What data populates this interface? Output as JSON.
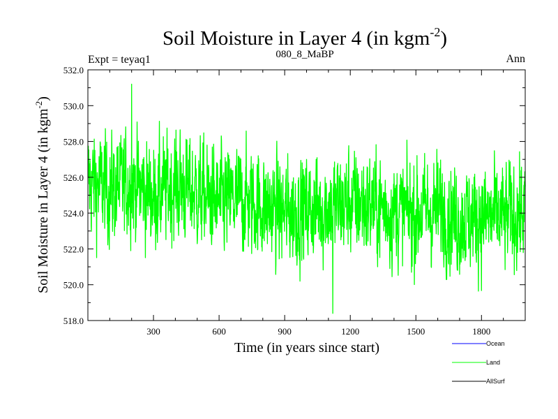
{
  "colors": {
    "background": "#ffffff",
    "axis": "#000000",
    "ocean": "#0000ff",
    "land": "#00ff00",
    "allsurf": "#000000"
  },
  "chart_data": {
    "type": "line",
    "title": "Soil Moisture in Layer 4 (in kgm",
    "title_sup": "-2",
    "title_close": ")",
    "subtitle_left": "Expt = teyaq1",
    "subtitle_center": "080_8_MaBP",
    "subtitle_right": "Ann",
    "xlabel": "Time (in years since start)",
    "ylabel": "Soil Moisture in Layer 4 (in kgm",
    "ylabel_sup": "-2",
    "ylabel_close": ")",
    "xlim": [
      0,
      2000
    ],
    "ylim": [
      518.0,
      532.0
    ],
    "xticks": [
      300,
      600,
      900,
      1200,
      1500,
      1800
    ],
    "xtick_labels": [
      "300",
      "600",
      "900",
      "1200",
      "1500",
      "1800"
    ],
    "yticks": [
      518.0,
      520.0,
      522.0,
      524.0,
      526.0,
      528.0,
      530.0,
      532.0
    ],
    "ytick_labels": [
      "518.0",
      "520.0",
      "522.0",
      "524.0",
      "526.0",
      "528.0",
      "530.0",
      "532.0"
    ],
    "legend": [
      "Ocean",
      "Land",
      "AllSurf"
    ],
    "series": [
      {
        "name": "Land",
        "color": "#00ff00",
        "anchors": [
          {
            "x": 0,
            "y": 525.8
          },
          {
            "x": 100,
            "y": 525.3
          },
          {
            "x": 200,
            "y": 525.7
          },
          {
            "x": 300,
            "y": 524.9
          },
          {
            "x": 400,
            "y": 525.6
          },
          {
            "x": 500,
            "y": 525.1
          },
          {
            "x": 600,
            "y": 524.6
          },
          {
            "x": 700,
            "y": 524.8
          },
          {
            "x": 800,
            "y": 524.4
          },
          {
            "x": 900,
            "y": 524.0
          },
          {
            "x": 1000,
            "y": 524.2
          },
          {
            "x": 1100,
            "y": 524.3
          },
          {
            "x": 1200,
            "y": 524.6
          },
          {
            "x": 1300,
            "y": 524.4
          },
          {
            "x": 1400,
            "y": 524.1
          },
          {
            "x": 1500,
            "y": 524.0
          },
          {
            "x": 1600,
            "y": 524.2
          },
          {
            "x": 1700,
            "y": 523.6
          },
          {
            "x": 1800,
            "y": 523.8
          },
          {
            "x": 1900,
            "y": 523.7
          },
          {
            "x": 2000,
            "y": 524.2
          }
        ],
        "noise_amplitude": 1.6,
        "max": {
          "x": 200,
          "y": 531.2
        },
        "min": {
          "x": 1120,
          "y": 518.4
        }
      }
    ]
  }
}
